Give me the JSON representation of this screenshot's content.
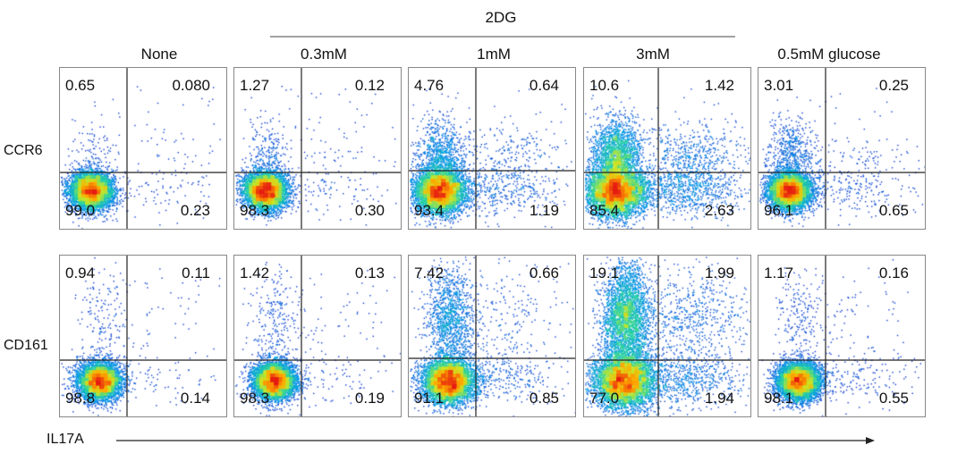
{
  "group_label": "2DG",
  "row_labels": [
    "CCR6",
    "CD161"
  ],
  "x_axis_label": "IL17A",
  "colors": {
    "gate_line": "#222222",
    "arrow": "#222222",
    "panel_border": "#888888"
  },
  "chart_data": {
    "type": "flow-cytometry-quadrant-grid",
    "columns": [
      "None",
      "0.3mM",
      "1mM",
      "3mM",
      "0.5mM glucose"
    ],
    "rows": [
      {
        "marker": "CCR6",
        "panels": [
          {
            "column": "None",
            "UL": "0.65",
            "UR": "0.080",
            "LL": "99.0",
            "LR": "0.23"
          },
          {
            "column": "0.3mM",
            "UL": "1.27",
            "UR": "0.12",
            "LL": "98.3",
            "LR": "0.30"
          },
          {
            "column": "1mM",
            "UL": "4.76",
            "UR": "0.64",
            "LL": "93.4",
            "LR": "1.19"
          },
          {
            "column": "3mM",
            "UL": "10.6",
            "UR": "1.42",
            "LL": "85.4",
            "LR": "2.63"
          },
          {
            "column": "0.5mM glucose",
            "UL": "3.01",
            "UR": "0.25",
            "LL": "96.1",
            "LR": "0.65"
          }
        ]
      },
      {
        "marker": "CD161",
        "panels": [
          {
            "column": "None",
            "UL": "0.94",
            "UR": "0.11",
            "LL": "98.8",
            "LR": "0.14"
          },
          {
            "column": "0.3mM",
            "UL": "1.42",
            "UR": "0.13",
            "LL": "98.3",
            "LR": "0.19"
          },
          {
            "column": "1mM",
            "UL": "7.42",
            "UR": "0.66",
            "LL": "91.1",
            "LR": "0.85"
          },
          {
            "column": "3mM",
            "UL": "19.1",
            "UR": "1.99",
            "LL": "77.0",
            "LR": "1.94"
          },
          {
            "column": "0.5mM glucose",
            "UL": "1.17",
            "UR": "0.16",
            "LL": "98.1",
            "LR": "0.55"
          }
        ]
      }
    ]
  }
}
